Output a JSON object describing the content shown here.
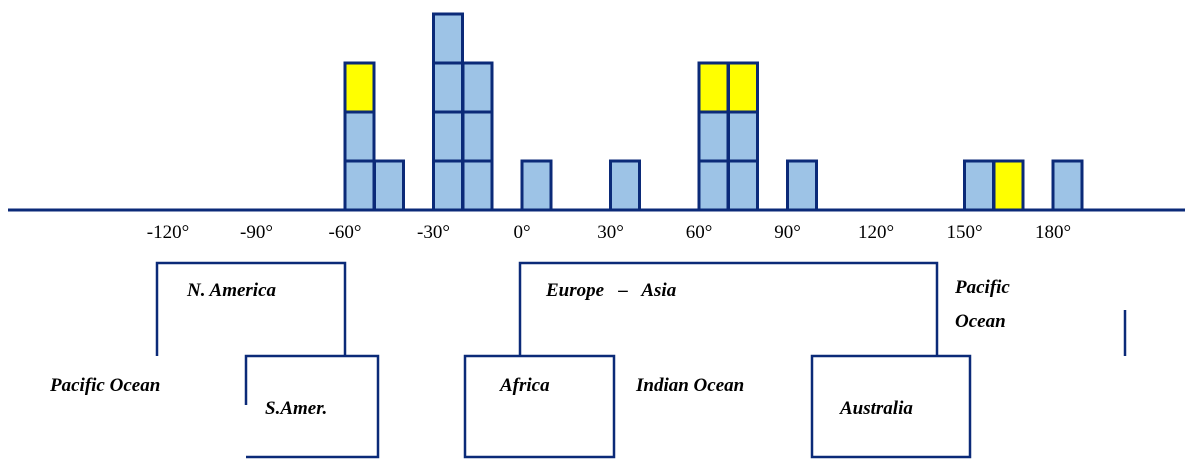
{
  "colors": {
    "outline": "#0b2a78",
    "fill_blue": "#9dc3e6",
    "fill_yellow": "#ffff00",
    "axis": "#0b2a78"
  },
  "chart_data": {
    "type": "bar",
    "x_unit": "degrees longitude",
    "bin_width": 10,
    "ticks": [
      "-120°",
      "-90°",
      "-60°",
      "-30°",
      "0°",
      "30°",
      "60°",
      "90°",
      "120°",
      "150°",
      "180°"
    ],
    "tick_values": [
      -120,
      -90,
      -60,
      -30,
      0,
      30,
      60,
      90,
      120,
      150,
      180
    ],
    "stacks": [
      {
        "x": -60,
        "cells": [
          "blue",
          "blue",
          "yellow"
        ]
      },
      {
        "x": -50,
        "cells": [
          "blue"
        ]
      },
      {
        "x": -30,
        "cells": [
          "blue",
          "blue",
          "blue",
          "blue"
        ]
      },
      {
        "x": -20,
        "cells": [
          "blue",
          "blue",
          "blue"
        ]
      },
      {
        "x": 0,
        "cells": [
          "blue"
        ]
      },
      {
        "x": 30,
        "cells": [
          "blue"
        ]
      },
      {
        "x": 60,
        "cells": [
          "blue",
          "blue",
          "yellow"
        ]
      },
      {
        "x": 70,
        "cells": [
          "blue",
          "blue",
          "yellow"
        ]
      },
      {
        "x": 90,
        "cells": [
          "blue"
        ]
      },
      {
        "x": 150,
        "cells": [
          "blue"
        ]
      },
      {
        "x": 160,
        "cells": [
          "yellow"
        ]
      },
      {
        "x": 180,
        "cells": [
          "blue"
        ]
      }
    ]
  },
  "regions": {
    "n_america": "N. America",
    "europe_asia": "Europe   –   Asia",
    "pacific_ocean_right_1": "Pacific",
    "pacific_ocean_right_2": "Ocean",
    "pacific_ocean_left": "Pacific Ocean",
    "s_america": "S.Amer.",
    "africa": "Africa",
    "indian_ocean": "Indian Ocean",
    "australia": "Australia"
  }
}
